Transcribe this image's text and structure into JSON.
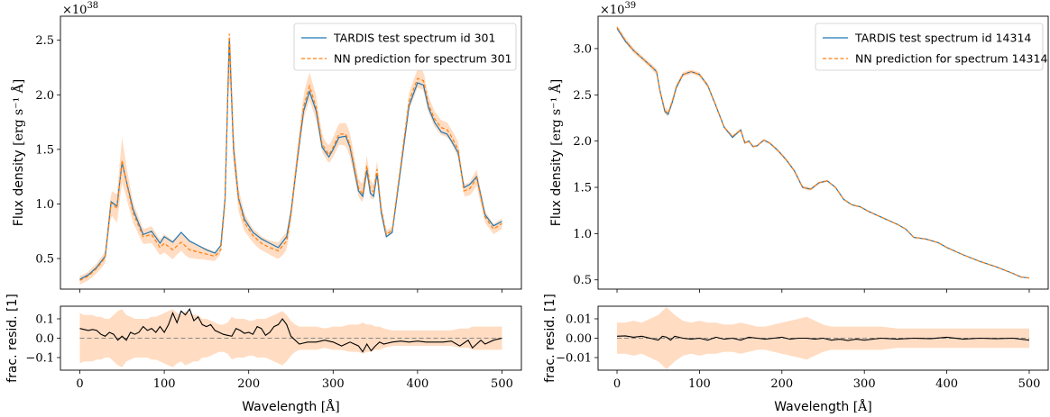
{
  "chart_data": [
    {
      "type": "line",
      "panel": "top-left",
      "offset_label": "×10",
      "offset_exp": "38",
      "ylabel": "Flux density",
      "ylabel_unit": "[erg s⁻¹ Å]",
      "ylim": [
        0.22,
        2.72
      ],
      "yticks": [
        0.5,
        1.0,
        1.5,
        2.0,
        2.5
      ],
      "ytick_labels": [
        "0.5",
        "1.0",
        "1.5",
        "2.0",
        "2.5"
      ],
      "xlim": [
        -23,
        523
      ],
      "x": [
        0,
        10,
        20,
        30,
        37,
        44,
        50,
        56,
        63,
        75,
        85,
        95,
        100,
        110,
        120,
        130,
        140,
        150,
        160,
        167,
        172,
        177,
        182,
        188,
        195,
        205,
        215,
        225,
        235,
        245,
        250,
        258,
        265,
        272,
        280,
        287,
        295,
        300,
        307,
        315,
        320,
        330,
        335,
        340,
        344,
        348,
        352,
        357,
        363,
        370,
        380,
        390,
        400,
        407,
        413,
        420,
        428,
        435,
        440,
        448,
        455,
        462,
        470,
        480,
        490,
        500
      ],
      "series": [
        {
          "name": "TARDIS test spectrum id 301",
          "color": "#1f77b4",
          "style": "solid",
          "values": [
            0.31,
            0.35,
            0.42,
            0.52,
            1.02,
            0.98,
            1.38,
            1.18,
            0.95,
            0.72,
            0.75,
            0.64,
            0.7,
            0.65,
            0.74,
            0.66,
            0.62,
            0.58,
            0.55,
            0.62,
            1.05,
            2.52,
            1.5,
            1.05,
            0.86,
            0.74,
            0.68,
            0.64,
            0.6,
            0.7,
            0.92,
            1.43,
            1.85,
            2.03,
            1.85,
            1.52,
            1.43,
            1.5,
            1.61,
            1.62,
            1.52,
            1.12,
            1.07,
            1.31,
            1.1,
            1.07,
            1.28,
            0.92,
            0.7,
            0.74,
            1.32,
            1.9,
            2.11,
            2.09,
            1.88,
            1.75,
            1.66,
            1.64,
            1.58,
            1.47,
            1.15,
            1.18,
            1.25,
            0.9,
            0.8,
            0.84
          ]
        },
        {
          "name": "NN prediction for spectrum 301",
          "color": "#ff7f0e",
          "style": "dashed",
          "values": [
            0.3,
            0.34,
            0.41,
            0.51,
            1.01,
            0.96,
            1.4,
            1.17,
            0.92,
            0.7,
            0.72,
            0.6,
            0.64,
            0.58,
            0.65,
            0.58,
            0.56,
            0.54,
            0.52,
            0.58,
            1.03,
            2.56,
            1.52,
            1.04,
            0.83,
            0.71,
            0.64,
            0.6,
            0.57,
            0.66,
            0.9,
            1.45,
            1.89,
            2.08,
            1.88,
            1.55,
            1.45,
            1.52,
            1.64,
            1.64,
            1.54,
            1.15,
            1.09,
            1.35,
            1.14,
            1.11,
            1.32,
            0.95,
            0.72,
            0.76,
            1.35,
            1.94,
            2.15,
            2.13,
            1.91,
            1.78,
            1.7,
            1.68,
            1.62,
            1.5,
            1.12,
            1.14,
            1.24,
            0.88,
            0.77,
            0.82
          ]
        }
      ],
      "band_color": "#ffdcc2",
      "resid": {
        "ylabel": "frac. resid. [1]",
        "ylim": [
          -0.165,
          0.165
        ],
        "yticks": [
          -0.1,
          0.0,
          0.1
        ],
        "ytick_labels": [
          "−0.1",
          "0.0",
          "0.1"
        ],
        "x": [
          0,
          5,
          10,
          15,
          20,
          25,
          30,
          35,
          40,
          45,
          50,
          55,
          60,
          65,
          70,
          75,
          80,
          85,
          90,
          95,
          100,
          105,
          110,
          115,
          120,
          125,
          130,
          135,
          140,
          145,
          150,
          155,
          160,
          165,
          170,
          175,
          180,
          185,
          190,
          195,
          200,
          205,
          210,
          215,
          220,
          225,
          230,
          235,
          240,
          245,
          250,
          255,
          260,
          265,
          270,
          275,
          280,
          290,
          300,
          310,
          320,
          330,
          335,
          340,
          345,
          350,
          355,
          360,
          370,
          380,
          390,
          400,
          410,
          420,
          430,
          440,
          450,
          460,
          465,
          470,
          475,
          480,
          490,
          500
        ],
        "values": [
          0.05,
          0.045,
          0.04,
          0.045,
          0.04,
          0.02,
          0.01,
          0.03,
          0.02,
          -0.01,
          0.01,
          -0.01,
          0.03,
          0.02,
          0.03,
          0.06,
          0.04,
          0.05,
          0.03,
          0.06,
          0.03,
          0.07,
          0.13,
          0.08,
          0.14,
          0.12,
          0.15,
          0.09,
          0.11,
          0.07,
          0.06,
          0.07,
          0.04,
          0.03,
          0.02,
          0.015,
          0.01,
          0.05,
          0.04,
          0.025,
          0.03,
          0.02,
          0.06,
          0.05,
          0.015,
          0.03,
          0.06,
          0.07,
          0.1,
          0.07,
          0.01,
          -0.01,
          -0.03,
          -0.025,
          -0.02,
          -0.02,
          -0.02,
          -0.01,
          -0.02,
          -0.04,
          -0.02,
          -0.04,
          -0.07,
          -0.03,
          -0.065,
          -0.04,
          -0.02,
          -0.03,
          -0.02,
          -0.015,
          -0.02,
          -0.015,
          -0.02,
          -0.02,
          -0.02,
          -0.015,
          -0.04,
          -0.01,
          -0.05,
          -0.03,
          -0.01,
          -0.03,
          -0.01,
          0.0
        ],
        "band": [
          0.13,
          0.12,
          0.12,
          0.12,
          0.11,
          0.11,
          0.1,
          0.1,
          0.12,
          0.14,
          0.15,
          0.12,
          0.11,
          0.1,
          0.1,
          0.1,
          0.1,
          0.11,
          0.11,
          0.12,
          0.13,
          0.14,
          0.15,
          0.13,
          0.12,
          0.14,
          0.13,
          0.12,
          0.12,
          0.1,
          0.1,
          0.09,
          0.08,
          0.07,
          0.07,
          0.08,
          0.11,
          0.1,
          0.1,
          0.1,
          0.09,
          0.09,
          0.1,
          0.1,
          0.1,
          0.11,
          0.12,
          0.13,
          0.14,
          0.12,
          0.09,
          0.07,
          0.06,
          0.06,
          0.06,
          0.06,
          0.06,
          0.05,
          0.06,
          0.06,
          0.07,
          0.07,
          0.08,
          0.07,
          0.07,
          0.06,
          0.06,
          0.05,
          0.04,
          0.04,
          0.04,
          0.04,
          0.04,
          0.04,
          0.04,
          0.04,
          0.05,
          0.05,
          0.06,
          0.06,
          0.06,
          0.06,
          0.06,
          0.06
        ]
      },
      "xlabel": "Wavelength",
      "xlabel_unit": "[Å]",
      "xticks": [
        0,
        100,
        200,
        300,
        400,
        500
      ],
      "xtick_labels": [
        "0",
        "100",
        "200",
        "300",
        "400",
        "500"
      ],
      "legend": "upper right"
    },
    {
      "type": "line",
      "panel": "top-right",
      "offset_label": "×10",
      "offset_exp": "39",
      "ylabel": "Flux density",
      "ylabel_unit": "[erg s⁻¹ Å]",
      "ylim": [
        0.4,
        3.35
      ],
      "yticks": [
        0.5,
        1.0,
        1.5,
        2.0,
        2.5,
        3.0
      ],
      "ytick_labels": [
        "0.5",
        "1.0",
        "1.5",
        "2.0",
        "2.5",
        "3.0"
      ],
      "xlim": [
        -23,
        523
      ],
      "x": [
        0,
        10,
        20,
        30,
        40,
        48,
        52,
        58,
        62,
        67,
        72,
        80,
        90,
        100,
        110,
        120,
        130,
        140,
        150,
        155,
        160,
        165,
        170,
        178,
        185,
        195,
        205,
        215,
        225,
        235,
        245,
        255,
        265,
        275,
        285,
        295,
        305,
        315,
        325,
        340,
        350,
        360,
        375,
        390,
        400,
        420,
        440,
        460,
        480,
        490,
        500
      ],
      "series": [
        {
          "name": "TARDIS test spectrum id 14314",
          "color": "#1f77b4",
          "style": "solid",
          "values": [
            3.22,
            3.08,
            2.98,
            2.9,
            2.82,
            2.75,
            2.55,
            2.32,
            2.29,
            2.42,
            2.58,
            2.72,
            2.75,
            2.72,
            2.6,
            2.38,
            2.15,
            2.04,
            2.12,
            1.98,
            2.0,
            1.94,
            1.95,
            2.01,
            1.98,
            1.9,
            1.8,
            1.68,
            1.5,
            1.48,
            1.55,
            1.57,
            1.5,
            1.37,
            1.31,
            1.29,
            1.24,
            1.2,
            1.16,
            1.1,
            1.05,
            0.96,
            0.94,
            0.9,
            0.85,
            0.77,
            0.7,
            0.64,
            0.57,
            0.53,
            0.52
          ]
        },
        {
          "name": "NN prediction for spectrum 14314",
          "color": "#ff7f0e",
          "style": "dashed",
          "values": [
            3.23,
            3.09,
            2.98,
            2.9,
            2.82,
            2.75,
            2.55,
            2.33,
            2.3,
            2.43,
            2.59,
            2.72,
            2.75,
            2.72,
            2.6,
            2.38,
            2.15,
            2.05,
            2.12,
            1.98,
            2.0,
            1.94,
            1.95,
            2.01,
            1.98,
            1.9,
            1.8,
            1.68,
            1.5,
            1.48,
            1.55,
            1.57,
            1.5,
            1.37,
            1.31,
            1.29,
            1.24,
            1.2,
            1.16,
            1.1,
            1.05,
            0.96,
            0.94,
            0.9,
            0.85,
            0.77,
            0.7,
            0.64,
            0.57,
            0.53,
            0.52
          ]
        }
      ],
      "band_color": "#ffdcc2",
      "resid": {
        "ylabel": "frac. resid. [1]",
        "ylim": [
          -0.0165,
          0.0165
        ],
        "yticks": [
          -0.01,
          0.0,
          0.01
        ],
        "ytick_labels": [
          "−0.01",
          "0.00",
          "0.01"
        ],
        "x": [
          0,
          10,
          20,
          30,
          40,
          50,
          55,
          60,
          65,
          70,
          80,
          90,
          100,
          110,
          120,
          130,
          140,
          150,
          160,
          170,
          180,
          190,
          200,
          210,
          220,
          230,
          240,
          250,
          260,
          270,
          280,
          290,
          300,
          320,
          340,
          360,
          380,
          400,
          420,
          440,
          460,
          480,
          500
        ],
        "values": [
          0.001,
          0.0012,
          0.0005,
          0.001,
          0.0,
          -0.001,
          0.001,
          0.0005,
          -0.001,
          0.001,
          0.0,
          -0.0005,
          0.0,
          -0.001,
          0.0005,
          -0.0005,
          0.0,
          -0.001,
          0.0005,
          0.0,
          -0.0005,
          0.0,
          0.0005,
          -0.0005,
          0.0,
          0.0,
          -0.0005,
          0.0,
          -0.001,
          -0.0005,
          -0.0012,
          -0.0005,
          -0.001,
          0.0,
          -0.0005,
          0.0,
          -0.0003,
          0.0005,
          -0.0005,
          0.0,
          -0.0003,
          0.0,
          -0.001
        ],
        "band": [
          0.008,
          0.008,
          0.009,
          0.008,
          0.01,
          0.012,
          0.014,
          0.016,
          0.014,
          0.012,
          0.009,
          0.008,
          0.009,
          0.008,
          0.008,
          0.007,
          0.007,
          0.008,
          0.007,
          0.006,
          0.006,
          0.007,
          0.008,
          0.009,
          0.01,
          0.011,
          0.009,
          0.007,
          0.006,
          0.006,
          0.006,
          0.006,
          0.006,
          0.006,
          0.005,
          0.005,
          0.005,
          0.005,
          0.005,
          0.005,
          0.005,
          0.005,
          0.005
        ]
      },
      "xlabel": "Wavelength",
      "xlabel_unit": "[Å]",
      "xticks": [
        0,
        100,
        200,
        300,
        400,
        500
      ],
      "xtick_labels": [
        "0",
        "100",
        "200",
        "300",
        "400",
        "500"
      ],
      "legend": "upper right"
    }
  ]
}
